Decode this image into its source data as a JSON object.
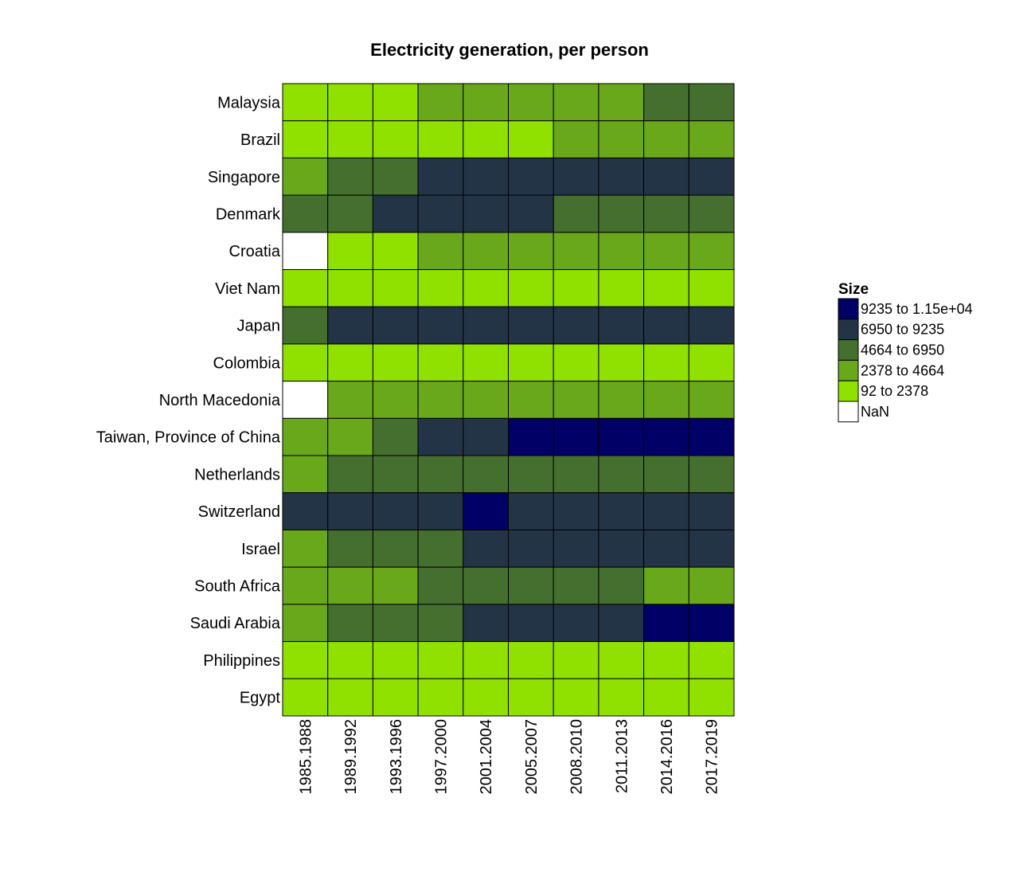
{
  "chart_data": {
    "type": "heatmap",
    "title": "Electricity generation, per person",
    "xlabel": "",
    "ylabel": "",
    "rows": [
      "Malaysia",
      "Brazil",
      "Singapore",
      "Denmark",
      "Croatia",
      "Viet Nam",
      "Japan",
      "Colombia",
      "North Macedonia",
      "Taiwan, Province of China",
      "Netherlands",
      "Switzerland",
      "Israel",
      "South Africa",
      "Saudi Arabia",
      "Philippines",
      "Egypt"
    ],
    "columns": [
      "1985.1988",
      "1989.1992",
      "1993.1996",
      "1997.2000",
      "2001.2004",
      "2005.2007",
      "2008.2010",
      "2011.2013",
      "2014.2016",
      "2017.2019"
    ],
    "bins": [
      {
        "label": "9235 to 1.15e+04",
        "color": "#000066"
      },
      {
        "label": "6950 to 9235",
        "color": "#243447"
      },
      {
        "label": "4664 to 6950",
        "color": "#446F2F"
      },
      {
        "label": "2378 to 4664",
        "color": "#69A81A"
      },
      {
        "label": "92 to 2378",
        "color": "#90E000"
      },
      {
        "label": "NaN",
        "color": "#FFFFFF"
      }
    ],
    "values": [
      [
        "92 to 2378",
        "92 to 2378",
        "92 to 2378",
        "2378 to 4664",
        "2378 to 4664",
        "2378 to 4664",
        "2378 to 4664",
        "2378 to 4664",
        "4664 to 6950",
        "4664 to 6950"
      ],
      [
        "92 to 2378",
        "92 to 2378",
        "92 to 2378",
        "92 to 2378",
        "92 to 2378",
        "92 to 2378",
        "2378 to 4664",
        "2378 to 4664",
        "2378 to 4664",
        "2378 to 4664"
      ],
      [
        "2378 to 4664",
        "4664 to 6950",
        "4664 to 6950",
        "6950 to 9235",
        "6950 to 9235",
        "6950 to 9235",
        "6950 to 9235",
        "6950 to 9235",
        "6950 to 9235",
        "6950 to 9235"
      ],
      [
        "4664 to 6950",
        "4664 to 6950",
        "6950 to 9235",
        "6950 to 9235",
        "6950 to 9235",
        "6950 to 9235",
        "4664 to 6950",
        "4664 to 6950",
        "4664 to 6950",
        "4664 to 6950"
      ],
      [
        "NaN",
        "92 to 2378",
        "92 to 2378",
        "2378 to 4664",
        "2378 to 4664",
        "2378 to 4664",
        "2378 to 4664",
        "2378 to 4664",
        "2378 to 4664",
        "2378 to 4664"
      ],
      [
        "92 to 2378",
        "92 to 2378",
        "92 to 2378",
        "92 to 2378",
        "92 to 2378",
        "92 to 2378",
        "92 to 2378",
        "92 to 2378",
        "92 to 2378",
        "92 to 2378"
      ],
      [
        "4664 to 6950",
        "6950 to 9235",
        "6950 to 9235",
        "6950 to 9235",
        "6950 to 9235",
        "6950 to 9235",
        "6950 to 9235",
        "6950 to 9235",
        "6950 to 9235",
        "6950 to 9235"
      ],
      [
        "92 to 2378",
        "92 to 2378",
        "92 to 2378",
        "92 to 2378",
        "92 to 2378",
        "92 to 2378",
        "92 to 2378",
        "92 to 2378",
        "92 to 2378",
        "92 to 2378"
      ],
      [
        "NaN",
        "2378 to 4664",
        "2378 to 4664",
        "2378 to 4664",
        "2378 to 4664",
        "2378 to 4664",
        "2378 to 4664",
        "2378 to 4664",
        "2378 to 4664",
        "2378 to 4664"
      ],
      [
        "2378 to 4664",
        "2378 to 4664",
        "4664 to 6950",
        "6950 to 9235",
        "6950 to 9235",
        "9235 to 1.15e+04",
        "9235 to 1.15e+04",
        "9235 to 1.15e+04",
        "9235 to 1.15e+04",
        "9235 to 1.15e+04"
      ],
      [
        "2378 to 4664",
        "4664 to 6950",
        "4664 to 6950",
        "4664 to 6950",
        "4664 to 6950",
        "4664 to 6950",
        "4664 to 6950",
        "4664 to 6950",
        "4664 to 6950",
        "4664 to 6950"
      ],
      [
        "6950 to 9235",
        "6950 to 9235",
        "6950 to 9235",
        "6950 to 9235",
        "9235 to 1.15e+04",
        "6950 to 9235",
        "6950 to 9235",
        "6950 to 9235",
        "6950 to 9235",
        "6950 to 9235"
      ],
      [
        "2378 to 4664",
        "4664 to 6950",
        "4664 to 6950",
        "4664 to 6950",
        "6950 to 9235",
        "6950 to 9235",
        "6950 to 9235",
        "6950 to 9235",
        "6950 to 9235",
        "6950 to 9235"
      ],
      [
        "2378 to 4664",
        "2378 to 4664",
        "2378 to 4664",
        "4664 to 6950",
        "4664 to 6950",
        "4664 to 6950",
        "4664 to 6950",
        "4664 to 6950",
        "2378 to 4664",
        "2378 to 4664"
      ],
      [
        "2378 to 4664",
        "4664 to 6950",
        "4664 to 6950",
        "4664 to 6950",
        "6950 to 9235",
        "6950 to 9235",
        "6950 to 9235",
        "6950 to 9235",
        "9235 to 1.15e+04",
        "9235 to 1.15e+04"
      ],
      [
        "92 to 2378",
        "92 to 2378",
        "92 to 2378",
        "92 to 2378",
        "92 to 2378",
        "92 to 2378",
        "92 to 2378",
        "92 to 2378",
        "92 to 2378",
        "92 to 2378"
      ],
      [
        "92 to 2378",
        "92 to 2378",
        "92 to 2378",
        "92 to 2378",
        "92 to 2378",
        "92 to 2378",
        "92 to 2378",
        "92 to 2378",
        "92 to 2378",
        "92 to 2378"
      ]
    ],
    "legend": {
      "title": "Size",
      "position": "right"
    },
    "grid": false
  }
}
